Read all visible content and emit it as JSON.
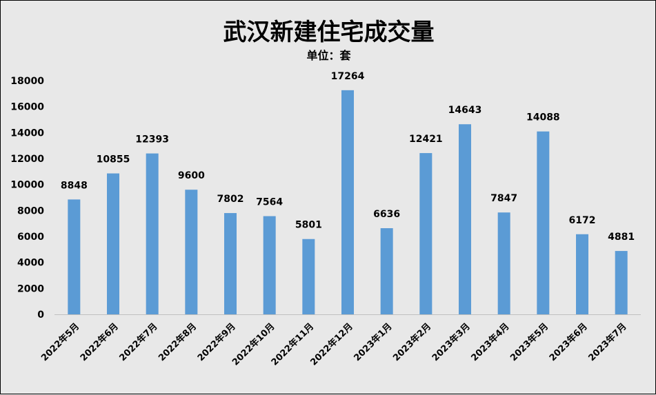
{
  "chart_data": {
    "type": "bar",
    "title": "武汉新建住宅成交量",
    "subtitle": "单位：套",
    "xlabel": "",
    "ylabel": "",
    "categories": [
      "2022年5月",
      "2022年6月",
      "2022年7月",
      "2022年8月",
      "2022年9月",
      "2022年10月",
      "2022年11月",
      "2022年12月",
      "2023年1月",
      "2023年2月",
      "2023年3月",
      "2023年4月",
      "2023年5月",
      "2023年6月",
      "2023年7月"
    ],
    "values": [
      8848,
      10855,
      12393,
      9600,
      7802,
      7564,
      5801,
      17264,
      6636,
      12421,
      14643,
      7847,
      14088,
      6172,
      4881
    ],
    "ylim": [
      0,
      18000
    ],
    "yticks": [
      "0",
      "2000",
      "4000",
      "6000",
      "8000",
      "10000",
      "12000",
      "14000",
      "16000",
      "18000"
    ],
    "grid": false,
    "legend": "none",
    "bar_color": "#5b9bd5"
  }
}
